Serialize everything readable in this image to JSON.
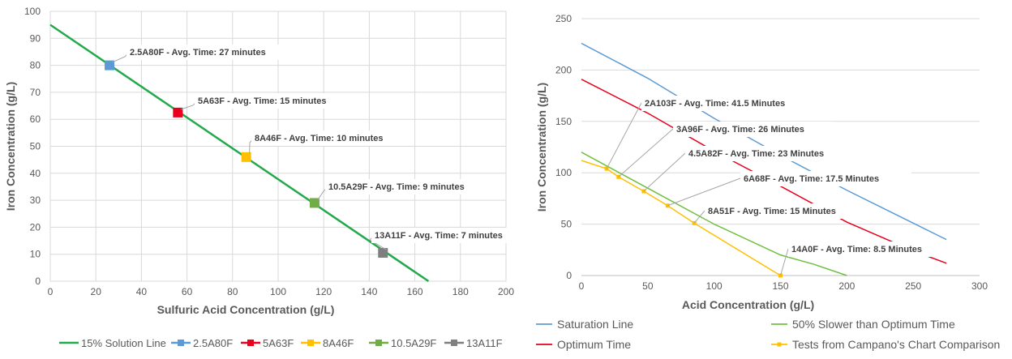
{
  "chart_data": [
    {
      "type": "scatter",
      "title": "",
      "xlabel": "Sulfuric Acid Concentration (g/L)",
      "ylabel": "Iron Concentration (g/L)",
      "xlim": [
        0,
        200
      ],
      "ylim": [
        0,
        100
      ],
      "xticks": [
        "0",
        "20",
        "40",
        "60",
        "80",
        "100",
        "120",
        "140",
        "160",
        "180",
        "200"
      ],
      "yticks": [
        "0",
        "10",
        "20",
        "30",
        "40",
        "50",
        "60",
        "70",
        "80",
        "90",
        "100"
      ],
      "grid": true,
      "legend_position": "bottom",
      "series": [
        {
          "name": "15% Solution Line",
          "kind": "line",
          "color": "#22a94b",
          "x": [
            0,
            166
          ],
          "y": [
            95,
            0
          ]
        },
        {
          "name": "2.5A80F",
          "kind": "marker",
          "color": "#5b9bd5",
          "x": [
            26
          ],
          "y": [
            80
          ]
        },
        {
          "name": "5A63F",
          "kind": "marker",
          "color": "#e8001c",
          "x": [
            56
          ],
          "y": [
            62.5
          ]
        },
        {
          "name": "8A46F",
          "kind": "marker",
          "color": "#ffc000",
          "x": [
            86
          ],
          "y": [
            46
          ]
        },
        {
          "name": "10.5A29F",
          "kind": "marker",
          "color": "#70ad47",
          "x": [
            116
          ],
          "y": [
            29
          ]
        },
        {
          "name": "13A11F",
          "kind": "marker",
          "color": "#7f7f7f",
          "x": [
            146
          ],
          "y": [
            10.5
          ]
        }
      ],
      "annotations": [
        {
          "text": "2.5A80F - Avg. Time: 27 minutes",
          "x": 26,
          "y": 80
        },
        {
          "text": "5A63F - Avg. Time: 15 minutes",
          "x": 56,
          "y": 62.5
        },
        {
          "text": "8A46F - Avg. Time: 10 minutes",
          "x": 86,
          "y": 46
        },
        {
          "text": "10.5A29F - Avg. Time: 9 minutes",
          "x": 116,
          "y": 29
        },
        {
          "text": "13A11F - Avg. Time: 7 minutes",
          "x": 146,
          "y": 10.5
        }
      ]
    },
    {
      "type": "line",
      "title": "",
      "xlabel": "Acid Concentration (g/L)",
      "ylabel": "Iron Concentration (g/L)",
      "xlim": [
        0,
        300
      ],
      "ylim": [
        0,
        250
      ],
      "xticks": [
        "0",
        "50",
        "100",
        "150",
        "200",
        "250",
        "300"
      ],
      "yticks": [
        "0",
        "50",
        "100",
        "150",
        "200",
        "250"
      ],
      "grid": true,
      "legend_position": "bottom",
      "series": [
        {
          "name": "Saturation Line",
          "kind": "line",
          "color": "#5b9bd5",
          "x": [
            0,
            50,
            100,
            150,
            200,
            250,
            275
          ],
          "y": [
            226,
            192,
            153,
            117,
            83,
            51,
            35
          ]
        },
        {
          "name": "50% Slower than Optimum Time",
          "kind": "line",
          "color": "#70c040",
          "x": [
            0,
            50,
            100,
            150,
            175,
            200
          ],
          "y": [
            120,
            85,
            50,
            20,
            11,
            0
          ]
        },
        {
          "name": "Optimum Time",
          "kind": "line",
          "color": "#e8001c",
          "x": [
            0,
            50,
            100,
            150,
            200,
            250,
            275
          ],
          "y": [
            191,
            158,
            121,
            87,
            52,
            24,
            12
          ]
        },
        {
          "name": "Tests from Campano's Chart Comparison",
          "kind": "line-marker",
          "color": "#ffc000",
          "x": [
            0,
            19,
            28,
            47,
            65,
            85,
            150
          ],
          "y": [
            112,
            104,
            96,
            82,
            68,
            51,
            0
          ]
        }
      ],
      "annotations": [
        {
          "text": "2A103F - Avg. Time: 41.5 Minutes",
          "x": 19,
          "y": 104
        },
        {
          "text": "3A96F - Avg. Time: 26 Minutes",
          "x": 28,
          "y": 96
        },
        {
          "text": "4.5A82F - Avg. Time: 23 Minutes",
          "x": 47,
          "y": 82
        },
        {
          "text": "6A68F - Avg. Time: 17.5 Minutes",
          "x": 65,
          "y": 68
        },
        {
          "text": "8A51F - Avg. Time: 15 Minutes",
          "x": 85,
          "y": 51
        },
        {
          "text": "14A0F - Avg. Time: 8.5 Minutes",
          "x": 150,
          "y": 0
        }
      ]
    }
  ]
}
